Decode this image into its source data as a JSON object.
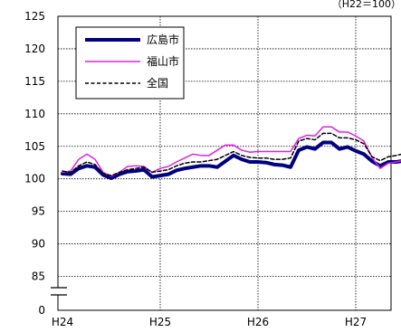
{
  "chart_data": {
    "type": "line",
    "unit_note": "（H22＝100）",
    "ylim": [
      80,
      125
    ],
    "y_ticks": [
      0,
      85,
      90,
      95,
      100,
      105,
      110,
      115,
      120,
      125
    ],
    "y_axis_break": true,
    "grid": true,
    "legend_position": "top-left",
    "x_tick_labels": [
      "H24",
      "H25",
      "H26",
      "H27"
    ],
    "x_tick_index": [
      0,
      12,
      24,
      36
    ],
    "series": [
      {
        "name": "広島市",
        "color": "#000080",
        "style": "thick",
        "values": [
          100.8,
          100.7,
          101.6,
          102.0,
          101.8,
          100.6,
          100.1,
          100.7,
          101.1,
          101.2,
          101.4,
          100.3,
          100.5,
          100.7,
          101.3,
          101.6,
          101.8,
          102.0,
          102.0,
          101.8,
          102.7,
          103.6,
          103.0,
          102.6,
          102.6,
          102.5,
          102.2,
          102.1,
          101.8,
          104.4,
          104.9,
          104.6,
          105.6,
          105.6,
          104.6,
          104.9,
          104.3,
          103.8,
          102.7,
          102.0,
          102.6,
          102.6,
          102.8,
          102.9
        ]
      },
      {
        "name": "福山市",
        "color": "#e020e0",
        "style": "solid",
        "values": [
          101.0,
          101.2,
          103.0,
          103.8,
          103.0,
          101.0,
          100.4,
          101.0,
          101.9,
          102.0,
          101.9,
          101.0,
          101.6,
          101.9,
          102.6,
          103.2,
          103.8,
          103.6,
          103.6,
          104.4,
          105.2,
          105.2,
          104.4,
          104.1,
          104.2,
          104.2,
          104.2,
          104.2,
          104.2,
          106.2,
          106.7,
          106.6,
          108.0,
          108.0,
          107.2,
          107.2,
          106.6,
          105.8,
          103.3,
          101.6,
          102.4,
          102.6,
          102.9,
          103.3
        ]
      },
      {
        "name": "全国",
        "color": "#000000",
        "style": "dashed",
        "values": [
          101.2,
          101.0,
          102.0,
          102.6,
          102.2,
          100.8,
          100.5,
          101.0,
          101.4,
          101.6,
          101.8,
          101.0,
          101.2,
          101.4,
          102.0,
          102.4,
          102.6,
          102.6,
          102.8,
          103.0,
          103.6,
          104.2,
          103.6,
          103.3,
          103.2,
          103.2,
          103.0,
          103.0,
          103.2,
          105.8,
          106.2,
          106.0,
          107.0,
          107.0,
          106.3,
          106.3,
          106.0,
          105.4,
          103.4,
          102.8,
          103.4,
          103.6,
          103.9,
          104.3
        ]
      }
    ]
  }
}
